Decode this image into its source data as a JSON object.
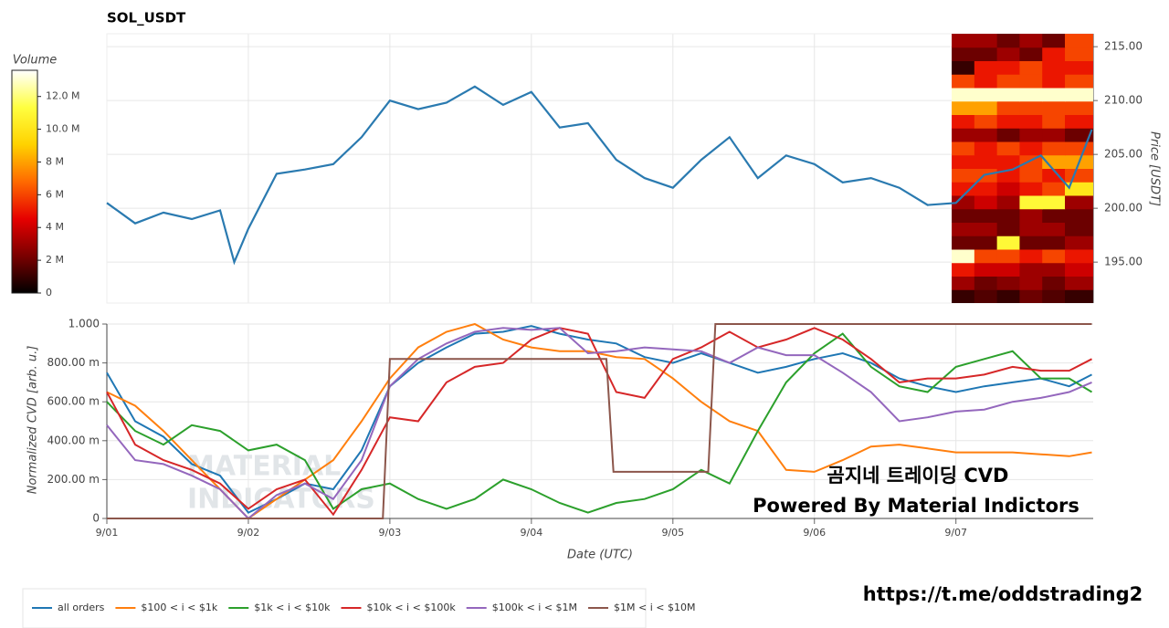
{
  "chart_data": [
    {
      "type": "line",
      "title": "SOL_USDT",
      "y_label": "Price [USDT]",
      "color": "#2a7ab0",
      "x": [
        0,
        0.2,
        0.4,
        0.6,
        0.8,
        0.9,
        1.0,
        1.2,
        1.4,
        1.6,
        1.8,
        2.0,
        2.2,
        2.4,
        2.6,
        2.8,
        3.0,
        3.2,
        3.4,
        3.6,
        3.8,
        4.0,
        4.2,
        4.4,
        4.6,
        4.8,
        5.0,
        5.2,
        5.4,
        5.6,
        5.8,
        6.0,
        6.2,
        6.4,
        6.6,
        6.8,
        6.96
      ],
      "values": [
        200.5,
        198.6,
        199.6,
        199.0,
        199.8,
        195.0,
        198.1,
        203.2,
        203.6,
        204.1,
        206.6,
        210.0,
        209.2,
        209.8,
        211.3,
        209.6,
        210.8,
        207.5,
        207.9,
        204.5,
        202.8,
        201.9,
        204.5,
        206.6,
        202.8,
        204.9,
        204.1,
        202.4,
        202.8,
        201.9,
        200.3,
        200.5,
        203.1,
        203.6,
        204.9,
        201.9,
        207.3
      ],
      "xlim": [
        0,
        6.97
      ],
      "ylim": [
        191.2,
        216.2
      ],
      "yticks": [
        {
          "value": 195,
          "label": "195.00"
        },
        {
          "value": 200,
          "label": "200.00"
        },
        {
          "value": 205,
          "label": "205.00"
        },
        {
          "value": 210,
          "label": "210.00"
        },
        {
          "value": 215,
          "label": "215.00"
        }
      ],
      "grid": true,
      "heatmap": {
        "title": "Volume",
        "x": [
          5.97,
          6.13,
          6.29,
          6.45,
          6.61,
          6.77,
          6.97
        ],
        "y": [
          191.2,
          192.45,
          193.7,
          194.95,
          196.2,
          197.45,
          198.7,
          199.95,
          201.2,
          202.45,
          203.7,
          204.95,
          206.2,
          207.45,
          208.7,
          209.95,
          211.2,
          212.45,
          213.7,
          214.95,
          216.2
        ],
        "values": [
          [
            1000000.0,
            1500000.0,
            1000000.0,
            2000000.0,
            1500000.0,
            1000000.0
          ],
          [
            3000000.0,
            2000000.0,
            2500000.0,
            3000000.0,
            2000000.0,
            3000000.0
          ],
          [
            5000000.0,
            4000000.0,
            4000000.0,
            3000000.0,
            3000000.0,
            4000000.0
          ],
          [
            13000000.0,
            6000000.0,
            6000000.0,
            5000000.0,
            6000000.0,
            5000000.0
          ],
          [
            2000000.0,
            2000000.0,
            11000000.0,
            2000000.0,
            2000000.0,
            3000000.0
          ],
          [
            3000000.0,
            3000000.0,
            2000000.0,
            3000000.0,
            3000000.0,
            2000000.0
          ],
          [
            2000000.0,
            2000000.0,
            2000000.0,
            3000000.0,
            2000000.0,
            2000000.0
          ],
          [
            3000000.0,
            4000000.0,
            3000000.0,
            11000000.0,
            11000000.0,
            3000000.0
          ],
          [
            5000000.0,
            5000000.0,
            4000000.0,
            5000000.0,
            6000000.0,
            10000000.0
          ],
          [
            6000000.0,
            6000000.0,
            5000000.0,
            6000000.0,
            5000000.0,
            6000000.0
          ],
          [
            5000000.0,
            5000000.0,
            5000000.0,
            6000000.0,
            8000000.0,
            8000000.0
          ],
          [
            6000000.0,
            5000000.0,
            6000000.0,
            5000000.0,
            6000000.0,
            6000000.0
          ],
          [
            3000000.0,
            3000000.0,
            2000000.0,
            3000000.0,
            3000000.0,
            2000000.0
          ],
          [
            5000000.0,
            6000000.0,
            5000000.0,
            5000000.0,
            6000000.0,
            5000000.0
          ],
          [
            8000000.0,
            8000000.0,
            6000000.0,
            6000000.0,
            6000000.0,
            6000000.0
          ],
          [
            13000000.0,
            13000000.0,
            13000000.0,
            13000000.0,
            13000000.0,
            13000000.0
          ],
          [
            6000000.0,
            5000000.0,
            6000000.0,
            6000000.0,
            5000000.0,
            6000000.0
          ],
          [
            1000000.0,
            5000000.0,
            5000000.0,
            6000000.0,
            5000000.0,
            5000000.0
          ],
          [
            2000000.0,
            2000000.0,
            3000000.0,
            2000000.0,
            5000000.0,
            6000000.0
          ],
          [
            3000000.0,
            3000000.0,
            2000000.0,
            3000000.0,
            2000000.0,
            6000000.0
          ]
        ],
        "clim": [
          0,
          13600000
        ],
        "cticks": [
          0,
          {
            "value": 2000000,
            "label": "2 M"
          },
          {
            "value": 4000000,
            "label": "4 M"
          },
          {
            "value": 6000000,
            "label": "6 M"
          },
          {
            "value": 8000000,
            "label": "8 M"
          },
          {
            "value": 10000000,
            "label": "10.0 M"
          },
          {
            "value": 12000000,
            "label": "12.0 M"
          }
        ],
        "colorscale": [
          "#000000",
          "#7a0000",
          "#e60000",
          "#ff6a00",
          "#ffd200",
          "#ffff40",
          "#ffffff"
        ]
      }
    },
    {
      "type": "line",
      "x_label": "Date (UTC)",
      "y_label": "Normalized CVD [arb. u.]",
      "x": [
        0,
        0.2,
        0.4,
        0.6,
        0.8,
        1.0,
        1.2,
        1.4,
        1.6,
        1.8,
        2.0,
        2.2,
        2.4,
        2.6,
        2.8,
        3.0,
        3.2,
        3.4,
        3.6,
        3.8,
        4.0,
        4.2,
        4.4,
        4.6,
        4.8,
        5.0,
        5.2,
        5.4,
        5.6,
        5.8,
        6.0,
        6.2,
        6.4,
        6.6,
        6.8,
        6.96
      ],
      "xlim": [
        0,
        6.97
      ],
      "ylim": [
        0,
        1
      ],
      "xticks": [
        {
          "value": 0,
          "label": "9/01"
        },
        {
          "value": 1,
          "label": "9/02"
        },
        {
          "value": 2,
          "label": "9/03"
        },
        {
          "value": 3,
          "label": "9/04"
        },
        {
          "value": 4,
          "label": "9/05"
        },
        {
          "value": 5,
          "label": "9/06"
        },
        {
          "value": 6,
          "label": "9/07"
        }
      ],
      "yticks": [
        0,
        {
          "value": 0.2,
          "label": "200.00 m"
        },
        {
          "value": 0.4,
          "label": "400.00 m"
        },
        {
          "value": 0.6,
          "label": "600.00 m"
        },
        {
          "value": 0.8,
          "label": "800.00 m"
        },
        {
          "value": 1,
          "label": "1.000"
        }
      ],
      "grid": true,
      "legend": "bottom-left",
      "series": [
        {
          "name": "all orders",
          "color": "#1f77b4",
          "values": [
            0.75,
            0.5,
            0.42,
            0.28,
            0.22,
            0.03,
            0.1,
            0.18,
            0.15,
            0.35,
            0.68,
            0.8,
            0.88,
            0.95,
            0.96,
            0.99,
            0.95,
            0.92,
            0.9,
            0.83,
            0.8,
            0.85,
            0.8,
            0.75,
            0.78,
            0.82,
            0.85,
            0.8,
            0.72,
            0.68,
            0.65,
            0.68,
            0.7,
            0.72,
            0.68,
            0.74
          ]
        },
        {
          "name": "$100 < i < $1k",
          "color": "#ff7f0e",
          "values": [
            0.65,
            0.58,
            0.45,
            0.3,
            0.15,
            0.0,
            0.1,
            0.2,
            0.3,
            0.5,
            0.72,
            0.88,
            0.96,
            1.0,
            0.92,
            0.88,
            0.86,
            0.86,
            0.83,
            0.82,
            0.72,
            0.6,
            0.5,
            0.45,
            0.25,
            0.24,
            0.3,
            0.37,
            0.38,
            0.36,
            0.34,
            0.34,
            0.34,
            0.33,
            0.32,
            0.34
          ]
        },
        {
          "name": "$1k < i < $10k",
          "color": "#2ca02c",
          "values": [
            0.6,
            0.45,
            0.38,
            0.48,
            0.45,
            0.35,
            0.38,
            0.3,
            0.05,
            0.15,
            0.18,
            0.1,
            0.05,
            0.1,
            0.2,
            0.15,
            0.08,
            0.03,
            0.08,
            0.1,
            0.15,
            0.25,
            0.18,
            0.45,
            0.7,
            0.85,
            0.95,
            0.78,
            0.68,
            0.65,
            0.78,
            0.82,
            0.86,
            0.72,
            0.72,
            0.65
          ]
        },
        {
          "name": "$10k < i < $100k",
          "color": "#d62728",
          "values": [
            0.65,
            0.38,
            0.3,
            0.25,
            0.18,
            0.05,
            0.15,
            0.2,
            0.02,
            0.25,
            0.52,
            0.5,
            0.7,
            0.78,
            0.8,
            0.92,
            0.98,
            0.95,
            0.65,
            0.62,
            0.82,
            0.88,
            0.96,
            0.88,
            0.92,
            0.98,
            0.92,
            0.82,
            0.7,
            0.72,
            0.72,
            0.74,
            0.78,
            0.76,
            0.76,
            0.82
          ]
        },
        {
          "name": "$100k < i < $1M",
          "color": "#9467bd",
          "values": [
            0.48,
            0.3,
            0.28,
            0.22,
            0.15,
            0.0,
            0.12,
            0.18,
            0.1,
            0.3,
            0.68,
            0.82,
            0.9,
            0.96,
            0.98,
            0.97,
            0.98,
            0.85,
            0.86,
            0.88,
            0.87,
            0.86,
            0.8,
            0.88,
            0.84,
            0.84,
            0.75,
            0.65,
            0.5,
            0.52,
            0.55,
            0.56,
            0.6,
            0.62,
            0.65,
            0.7
          ]
        },
        {
          "name": "$1M < i < $10M",
          "color": "#8c564b",
          "x": [
            0,
            1.95,
            2.0,
            3.53,
            3.58,
            4.25,
            4.3,
            6.96
          ],
          "values": [
            0,
            0,
            0.82,
            0.82,
            0.24,
            0.24,
            1.0,
            1.0
          ]
        }
      ]
    }
  ],
  "annotations": {
    "title": "곰지네 트레이딩 CVD",
    "subtitle": "Powered By Material Indictors",
    "link": "https://t.me/oddstrading2",
    "watermark": [
      "MATERIAL",
      "INDICATORS"
    ]
  }
}
